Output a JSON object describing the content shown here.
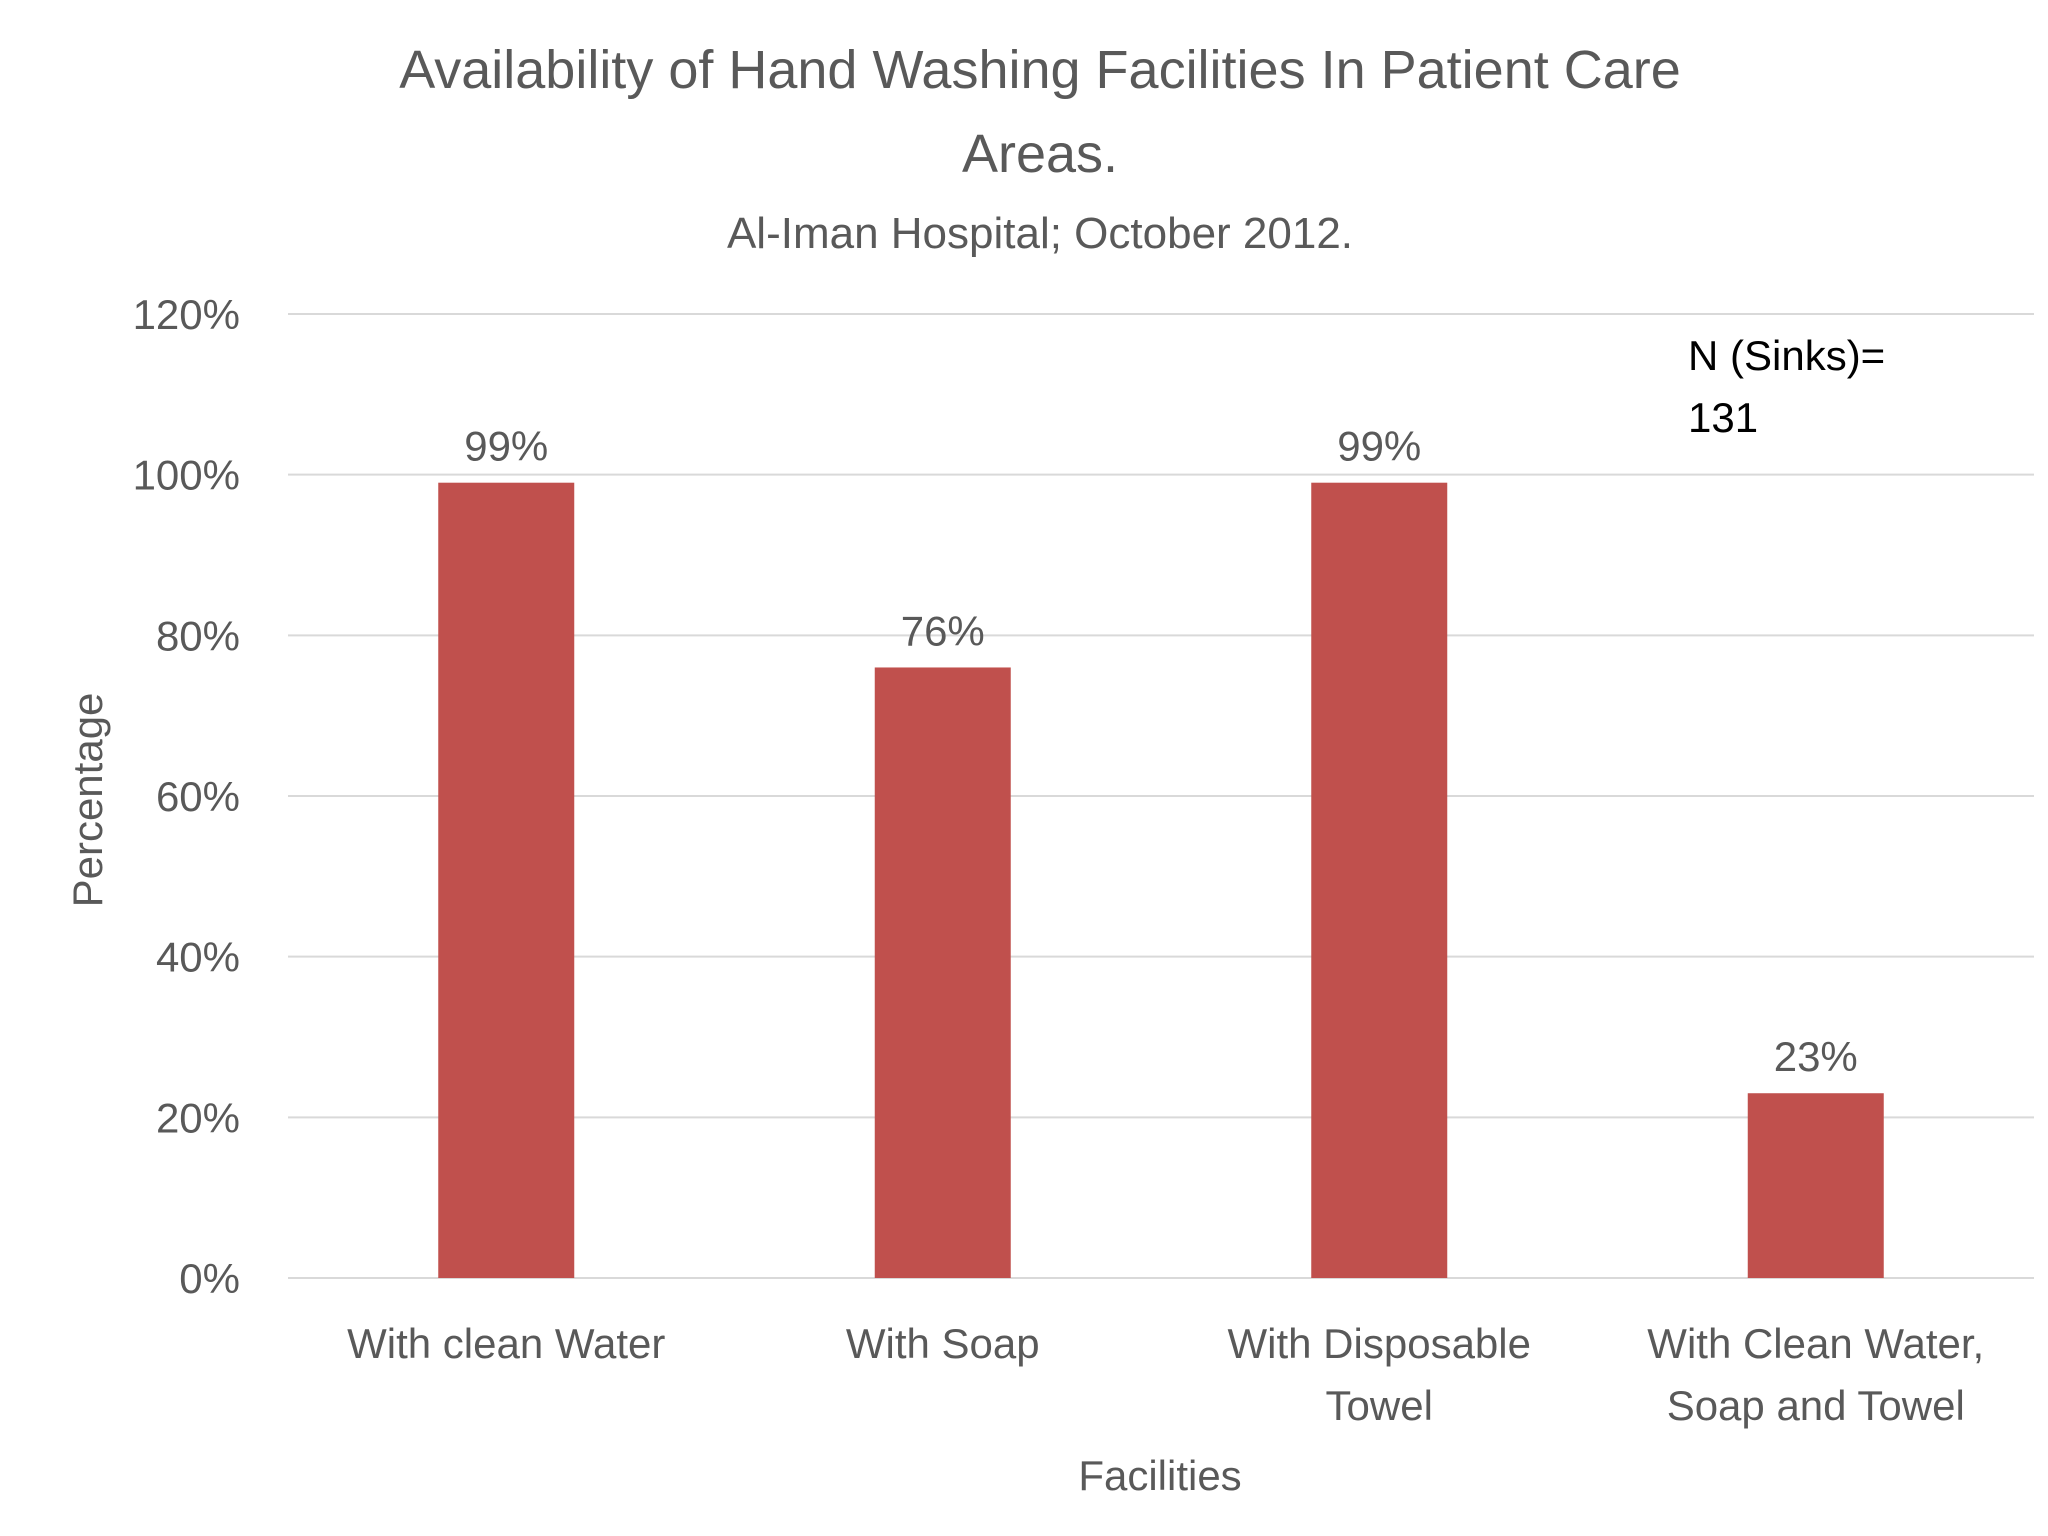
{
  "chart_data": {
    "type": "bar",
    "title_line1": "Availability of Hand Washing Facilities In Patient Care",
    "title_line2": "Areas.",
    "subtitle": "Al-Iman Hospital; October 2012.",
    "xlabel": "Facilities",
    "ylabel": "Percentage",
    "categories": [
      [
        "With clean Water"
      ],
      [
        "With Soap"
      ],
      [
        "With Disposable",
        "Towel"
      ],
      [
        "With Clean Water,",
        "Soap and Towel"
      ]
    ],
    "values": [
      99,
      76,
      99,
      23
    ],
    "data_labels": [
      "99%",
      "76%",
      "99%",
      "23%"
    ],
    "ylim": [
      0,
      120
    ],
    "yticks": [
      0,
      20,
      40,
      60,
      80,
      100,
      120
    ],
    "ytick_labels": [
      "0%",
      "20%",
      "40%",
      "60%",
      "80%",
      "100%",
      "120%"
    ],
    "grid": true,
    "legend": "none",
    "annotation_line1": "N (Sinks)=",
    "annotation_line2": "131",
    "colors": {
      "bar": "#c0504d",
      "grid": "#d9d9d9",
      "text": "#595959"
    }
  }
}
